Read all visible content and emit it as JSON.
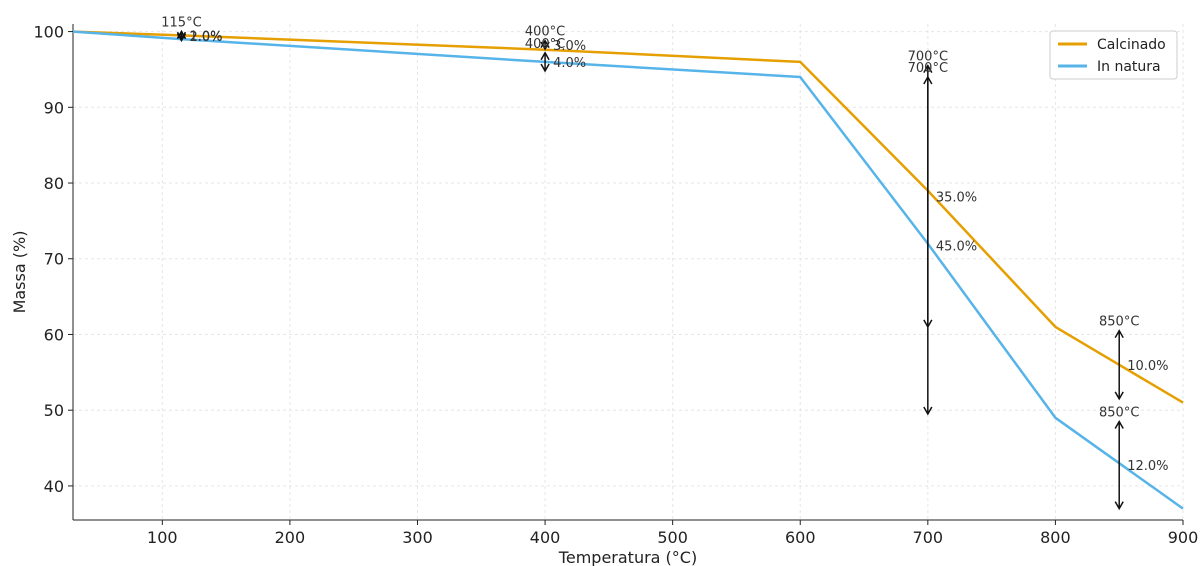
{
  "chart_data": {
    "type": "line",
    "title": "",
    "xlabel": "Temperatura (°C)",
    "ylabel": "Massa (%)",
    "xlim": [
      30,
      900
    ],
    "ylim": [
      35.5,
      101
    ],
    "xticks": [
      100,
      200,
      300,
      400,
      500,
      600,
      700,
      800,
      900
    ],
    "yticks": [
      40,
      50,
      60,
      70,
      80,
      90,
      100
    ],
    "grid": true,
    "legend_position": "top-right",
    "series": [
      {
        "name": "Calcinado",
        "color": "#E69F00",
        "x": [
          30,
          115,
          400,
          600,
          700,
          800,
          850,
          900
        ],
        "y": [
          100,
          99.5,
          97.6,
          96,
          79,
          61,
          56,
          51
        ]
      },
      {
        "name": "In natura",
        "color": "#56B4E9",
        "x": [
          30,
          115,
          400,
          600,
          700,
          800,
          850,
          900
        ],
        "y": [
          100,
          99,
          96,
          94,
          72,
          49,
          43,
          37
        ]
      }
    ],
    "annotations": [
      {
        "temp_label": "115°C",
        "pct_label": "1.0%",
        "x": 115,
        "y_from": 100,
        "y_to": 99
      },
      {
        "temp_label": "",
        "pct_label": "2.0%",
        "x": 115,
        "y_from": 100,
        "y_to": 98.8
      },
      {
        "temp_label": "400°C",
        "pct_label": "3.0%",
        "x": 400,
        "y_from": 97.7,
        "y_to": 98.8
      },
      {
        "temp_label": "400°C",
        "pct_label": "4.0%",
        "x": 400,
        "y_from": 97.2,
        "y_to": 94.8
      },
      {
        "temp_label": "700°C",
        "pct_label": "35.0%",
        "x": 700,
        "y_from": 95.5,
        "y_to": 61
      },
      {
        "temp_label": "700°C",
        "pct_label": "45.0%",
        "x": 700,
        "y_from": 94,
        "y_to": 49.5
      },
      {
        "temp_label": "850°C",
        "pct_label": "10.0%",
        "x": 850,
        "y_from": 60.5,
        "y_to": 51.5
      },
      {
        "temp_label": "850°C",
        "pct_label": "12.0%",
        "x": 850,
        "y_from": 48.5,
        "y_to": 37
      }
    ]
  }
}
